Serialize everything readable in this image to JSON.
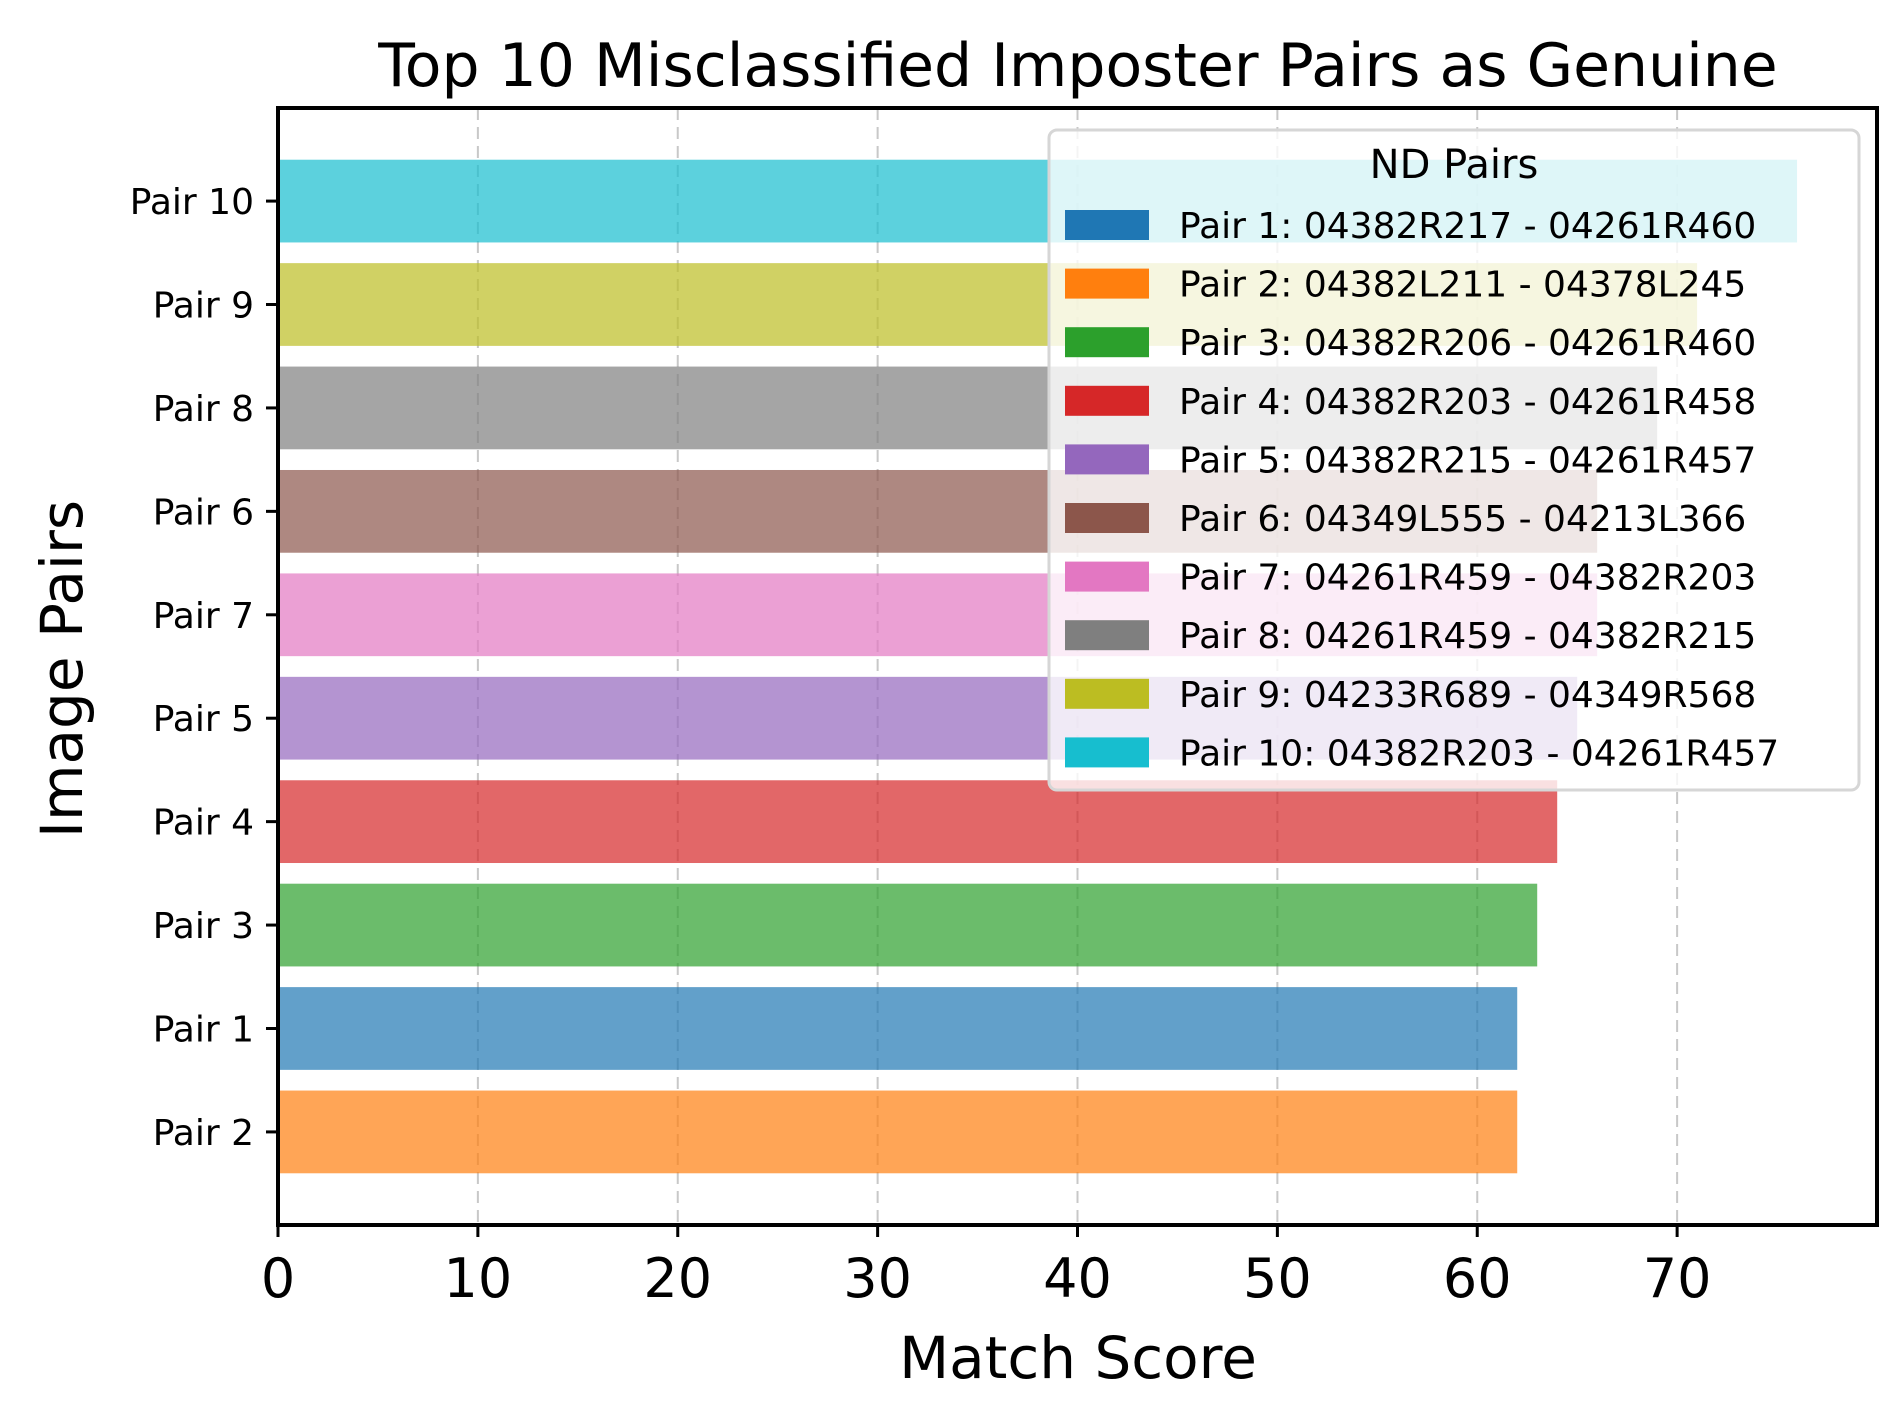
{
  "chart_data": {
    "type": "bar",
    "orientation": "horizontal",
    "title": "Top 10 Misclassified Imposter Pairs as Genuine",
    "xlabel": "Match Score",
    "ylabel": "Image Pairs",
    "xlim": [
      0,
      80
    ],
    "xticks": [
      0,
      10,
      20,
      30,
      40,
      50,
      60,
      70
    ],
    "grid": "x-axis dashed",
    "legend_title": "ND Pairs",
    "legend_position": "upper-right",
    "categories": [
      "Pair 2",
      "Pair 1",
      "Pair 3",
      "Pair 4",
      "Pair 5",
      "Pair 7",
      "Pair 6",
      "Pair 8",
      "Pair 9",
      "Pair 10"
    ],
    "values": [
      62,
      62,
      63,
      64,
      65,
      66,
      66,
      69,
      71,
      76
    ],
    "bar_colors": [
      "#ff7f0e",
      "#1f77b4",
      "#2ca02c",
      "#d62728",
      "#9467bd",
      "#e377c2",
      "#8c564b",
      "#7f7f7f",
      "#bcbd22",
      "#17becf"
    ],
    "legend": [
      {
        "label": "Pair 1: 04382R217 - 04261R460",
        "color": "#1f77b4"
      },
      {
        "label": "Pair 2: 04382L211 - 04378L245",
        "color": "#ff7f0e"
      },
      {
        "label": "Pair 3: 04382R206 - 04261R460",
        "color": "#2ca02c"
      },
      {
        "label": "Pair 4: 04382R203 - 04261R458",
        "color": "#d62728"
      },
      {
        "label": "Pair 5: 04382R215 - 04261R457",
        "color": "#9467bd"
      },
      {
        "label": "Pair 6: 04349L555 - 04213L366",
        "color": "#8c564b"
      },
      {
        "label": "Pair 7: 04261R459 - 04382R203",
        "color": "#e377c2"
      },
      {
        "label": "Pair 8: 04261R459 - 04382R215",
        "color": "#7f7f7f"
      },
      {
        "label": "Pair 9: 04233R689 - 04349R568",
        "color": "#bcbd22"
      },
      {
        "label": "Pair 10: 04382R203 - 04261R457",
        "color": "#17becf"
      }
    ]
  }
}
